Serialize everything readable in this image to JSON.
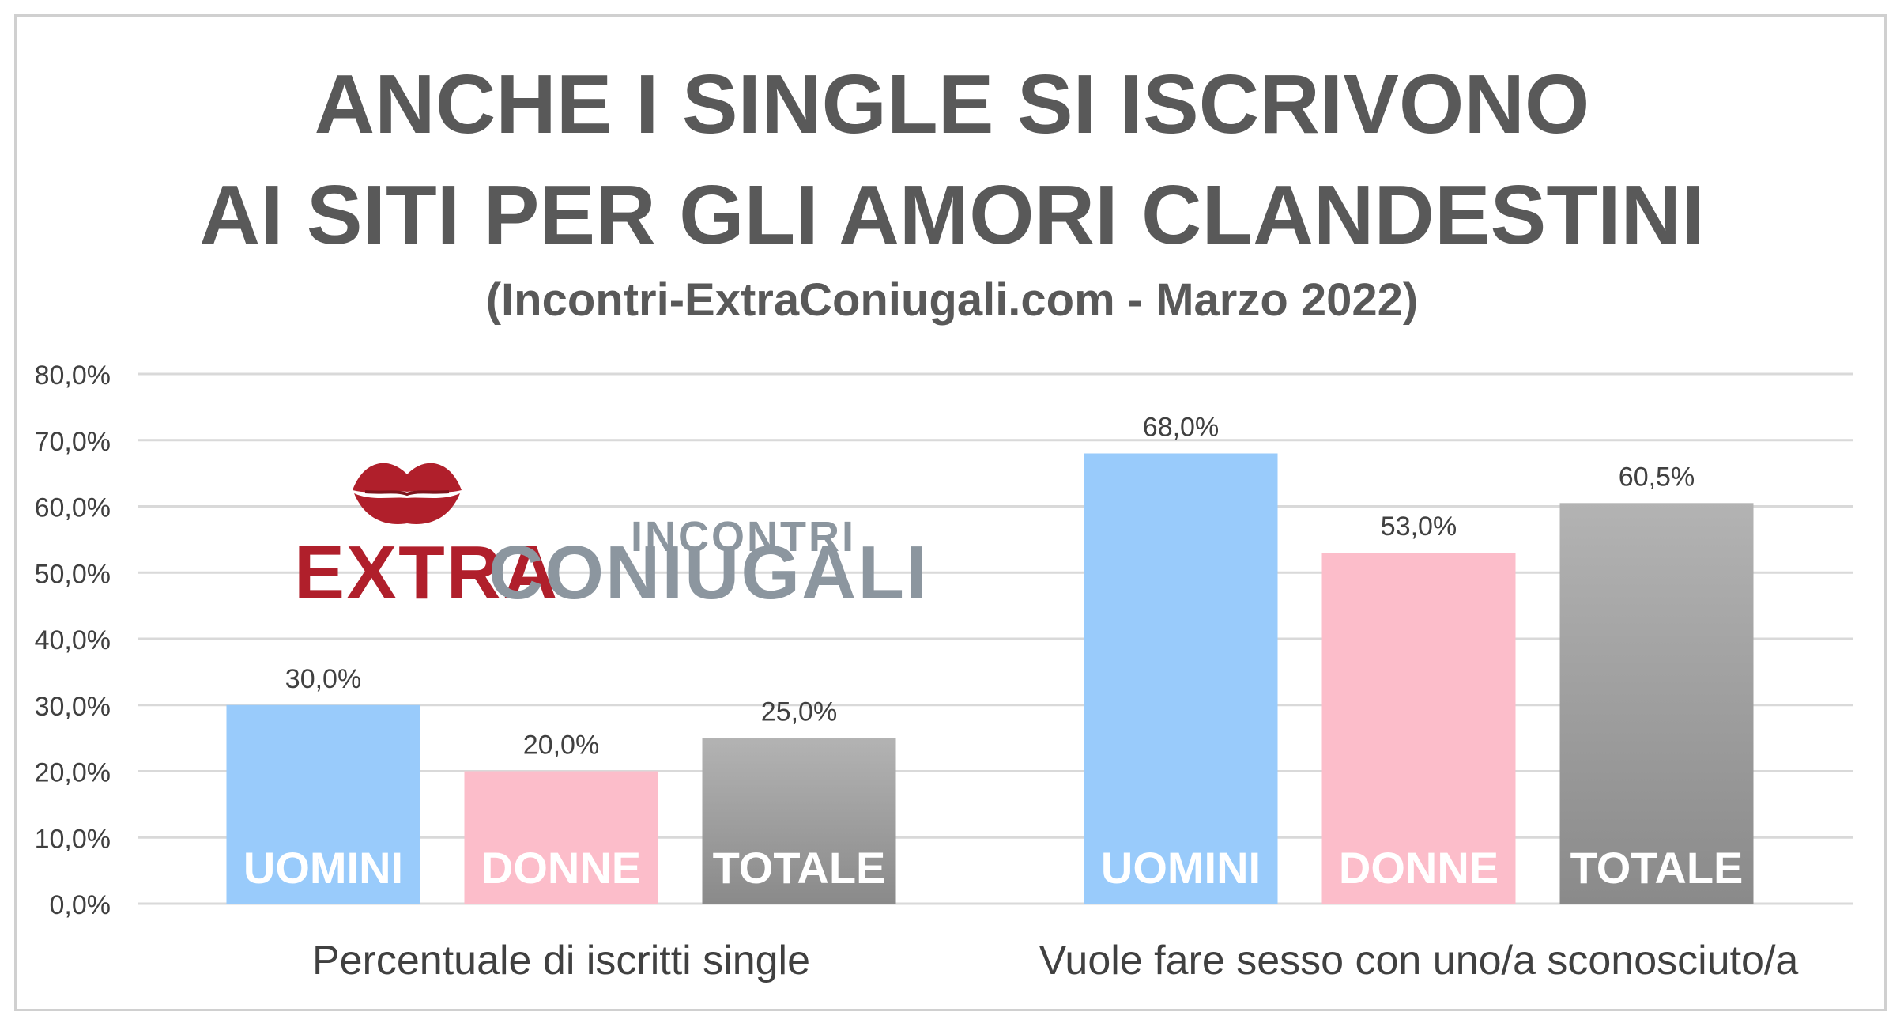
{
  "header": {
    "title_line1": "ANCHE I SINGLE SI ISCRIVONO",
    "title_line2": "AI SITI PER GLI AMORI CLANDESTINI",
    "subtitle": "(Incontri-ExtraConiugali.com - Marzo 2022)"
  },
  "logo": {
    "text_main_red": "EXTRA",
    "text_main_grey": "CONIUGALI",
    "text_small": "INCONTRI",
    "icon": "lips-icon"
  },
  "colors": {
    "uomini": "#99cbfb",
    "donne": "#fcbdca",
    "totale_top": "#b3b3b3",
    "totale_bottom": "#8a8a8a",
    "title": "#595959",
    "axis_text": "#404040",
    "grid": "#d9d9d9",
    "bar_label": "#ffffff",
    "logo_red": "#b01f2b",
    "logo_grey": "#8c969f"
  },
  "chart_data": {
    "type": "bar",
    "groups": [
      "Percentuale di iscritti single",
      "Vuole fare sesso con uno/a sconosciuto/a"
    ],
    "series": [
      {
        "name": "UOMINI",
        "values": [
          30.0,
          68.0
        ],
        "value_labels": [
          "30,0%",
          "68,0%"
        ]
      },
      {
        "name": "DONNE",
        "values": [
          20.0,
          53.0
        ],
        "value_labels": [
          "20,0%",
          "53,0%"
        ]
      },
      {
        "name": "TOTALE",
        "values": [
          25.0,
          60.5
        ],
        "value_labels": [
          "25,0%",
          "60,5%"
        ]
      }
    ],
    "ylim": [
      0,
      80
    ],
    "yticks": [
      0,
      10,
      20,
      30,
      40,
      50,
      60,
      70,
      80
    ],
    "ytick_labels": [
      "0,0%",
      "10,0%",
      "20,0%",
      "30,0%",
      "40,0%",
      "50,0%",
      "60,0%",
      "70,0%",
      "80,0%"
    ],
    "grid": true,
    "legend": "none",
    "title": "ANCHE I SINGLE SI ISCRIVONO AI SITI PER GLI AMORI CLANDESTINI",
    "subtitle": "(Incontri-ExtraConiugali.com - Marzo 2022)"
  }
}
